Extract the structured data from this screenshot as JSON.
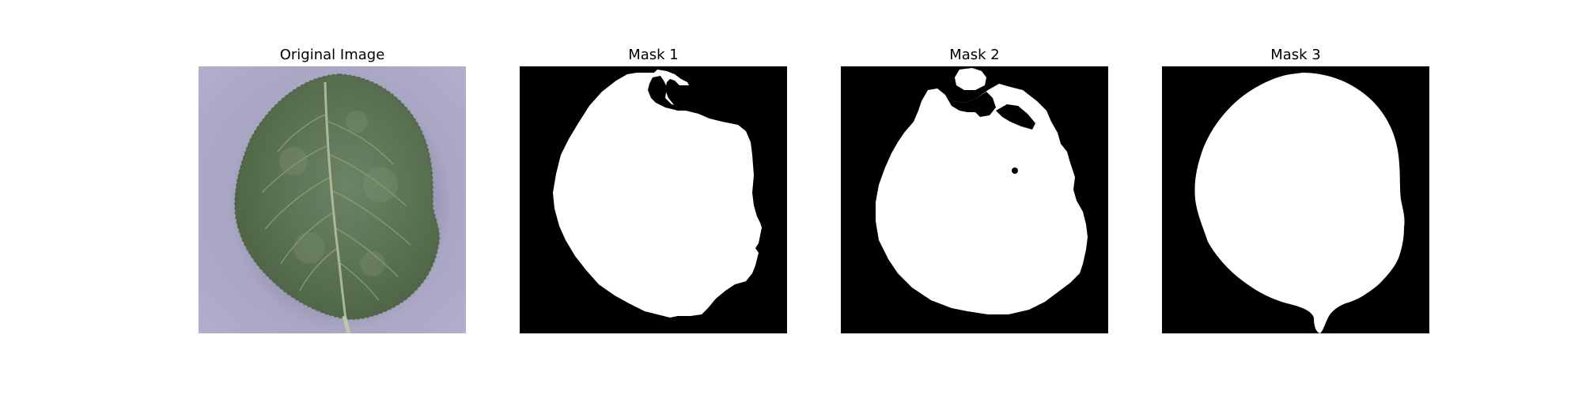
{
  "figure": {
    "panels": [
      {
        "title": "Original Image",
        "kind": "photo"
      },
      {
        "title": "Mask 1",
        "kind": "mask"
      },
      {
        "title": "Mask 2",
        "kind": "mask"
      },
      {
        "title": "Mask 3",
        "kind": "mask"
      }
    ]
  },
  "colors": {
    "background_lavender": "#a9a6c4",
    "leaf_green": "#5c7454",
    "leaf_dark": "#48603f",
    "vein": "#b7c39a",
    "mask_foreground": "#ffffff",
    "mask_background": "#000000"
  }
}
